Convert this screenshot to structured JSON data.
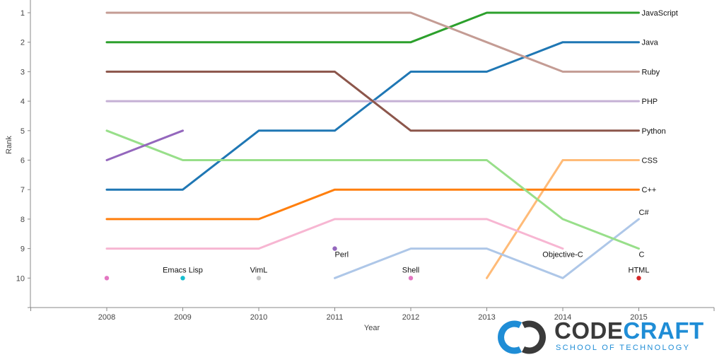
{
  "chart_data": {
    "type": "line",
    "title": "",
    "xlabel": "Year",
    "ylabel": "Rank",
    "x": [
      2008,
      2009,
      2010,
      2011,
      2012,
      2013,
      2014,
      2015
    ],
    "y_ticks": [
      1,
      2,
      3,
      4,
      5,
      6,
      7,
      8,
      9,
      10
    ],
    "ylim": [
      1,
      10
    ],
    "y_inverted": true,
    "grid": false,
    "series": [
      {
        "name": "JavaScript",
        "color": "#2ca02c",
        "values": [
          2,
          2,
          2,
          2,
          2,
          1,
          1,
          1
        ],
        "label_at": 2015
      },
      {
        "name": "Java",
        "color": "#1f77b4",
        "values": [
          7,
          7,
          5,
          5,
          3,
          3,
          2,
          2
        ],
        "label_at": 2015
      },
      {
        "name": "Ruby",
        "color": "#c49c94",
        "values": [
          1,
          1,
          1,
          1,
          1,
          2,
          3,
          3
        ],
        "label_at": 2015
      },
      {
        "name": "PHP",
        "color": "#c5b0d5",
        "values": [
          4,
          4,
          4,
          4,
          4,
          4,
          4,
          4
        ],
        "label_at": 2015
      },
      {
        "name": "Python",
        "color": "#8c564b",
        "values": [
          3,
          3,
          3,
          3,
          5,
          5,
          5,
          5
        ],
        "label_at": 2015
      },
      {
        "name": "CSS",
        "color": "#ffbb78",
        "values": [
          null,
          null,
          null,
          null,
          null,
          10,
          6,
          6
        ],
        "label_at": 2015
      },
      {
        "name": "C++",
        "color": "#ff7f0e",
        "values": [
          8,
          8,
          8,
          7,
          7,
          7,
          7,
          7
        ],
        "label_at": 2015
      },
      {
        "name": "C#",
        "color": "#aec7e8",
        "values": [
          null,
          null,
          null,
          10,
          9,
          9,
          10,
          8
        ],
        "label_at": 2015
      },
      {
        "name": "C",
        "color": "#98df8a",
        "values": [
          5,
          6,
          6,
          6,
          6,
          6,
          8,
          9
        ],
        "label_at": 2015
      },
      {
        "name": "Perl",
        "color": "#9467bd",
        "values": [
          6,
          5,
          null,
          9,
          null,
          null,
          null,
          null
        ],
        "label_at": 2011
      },
      {
        "name": "Objective-C",
        "color": "#f7b6d2",
        "values": [
          9,
          9,
          9,
          8,
          8,
          8,
          9,
          null
        ],
        "label_at": 2014
      },
      {
        "name": "Emacs Lisp",
        "color": "#17becf",
        "values": [
          null,
          10,
          null,
          null,
          null,
          null,
          null,
          null
        ],
        "label_at": 2009
      },
      {
        "name": "VimL",
        "color": "#c7c7c7",
        "values": [
          null,
          null,
          10,
          null,
          null,
          null,
          null,
          null
        ],
        "label_at": 2010
      },
      {
        "name": "Shell",
        "color": "#e377c2",
        "values": [
          10,
          null,
          null,
          null,
          10,
          null,
          null,
          null
        ],
        "label_at": 2012
      },
      {
        "name": "HTML",
        "color": "#d62728",
        "values": [
          null,
          null,
          null,
          null,
          null,
          null,
          null,
          10
        ],
        "label_at": 2015
      }
    ]
  },
  "logo": {
    "wordmark_prefix": "CODE",
    "wordmark_suffix": "CRAFT",
    "tagline": "SCHOOL OF TECHNOLOGY",
    "icon": "codecraft-logo-icon",
    "colors": {
      "blue": "#1f8dd6",
      "dark": "#3a3a3a"
    }
  }
}
